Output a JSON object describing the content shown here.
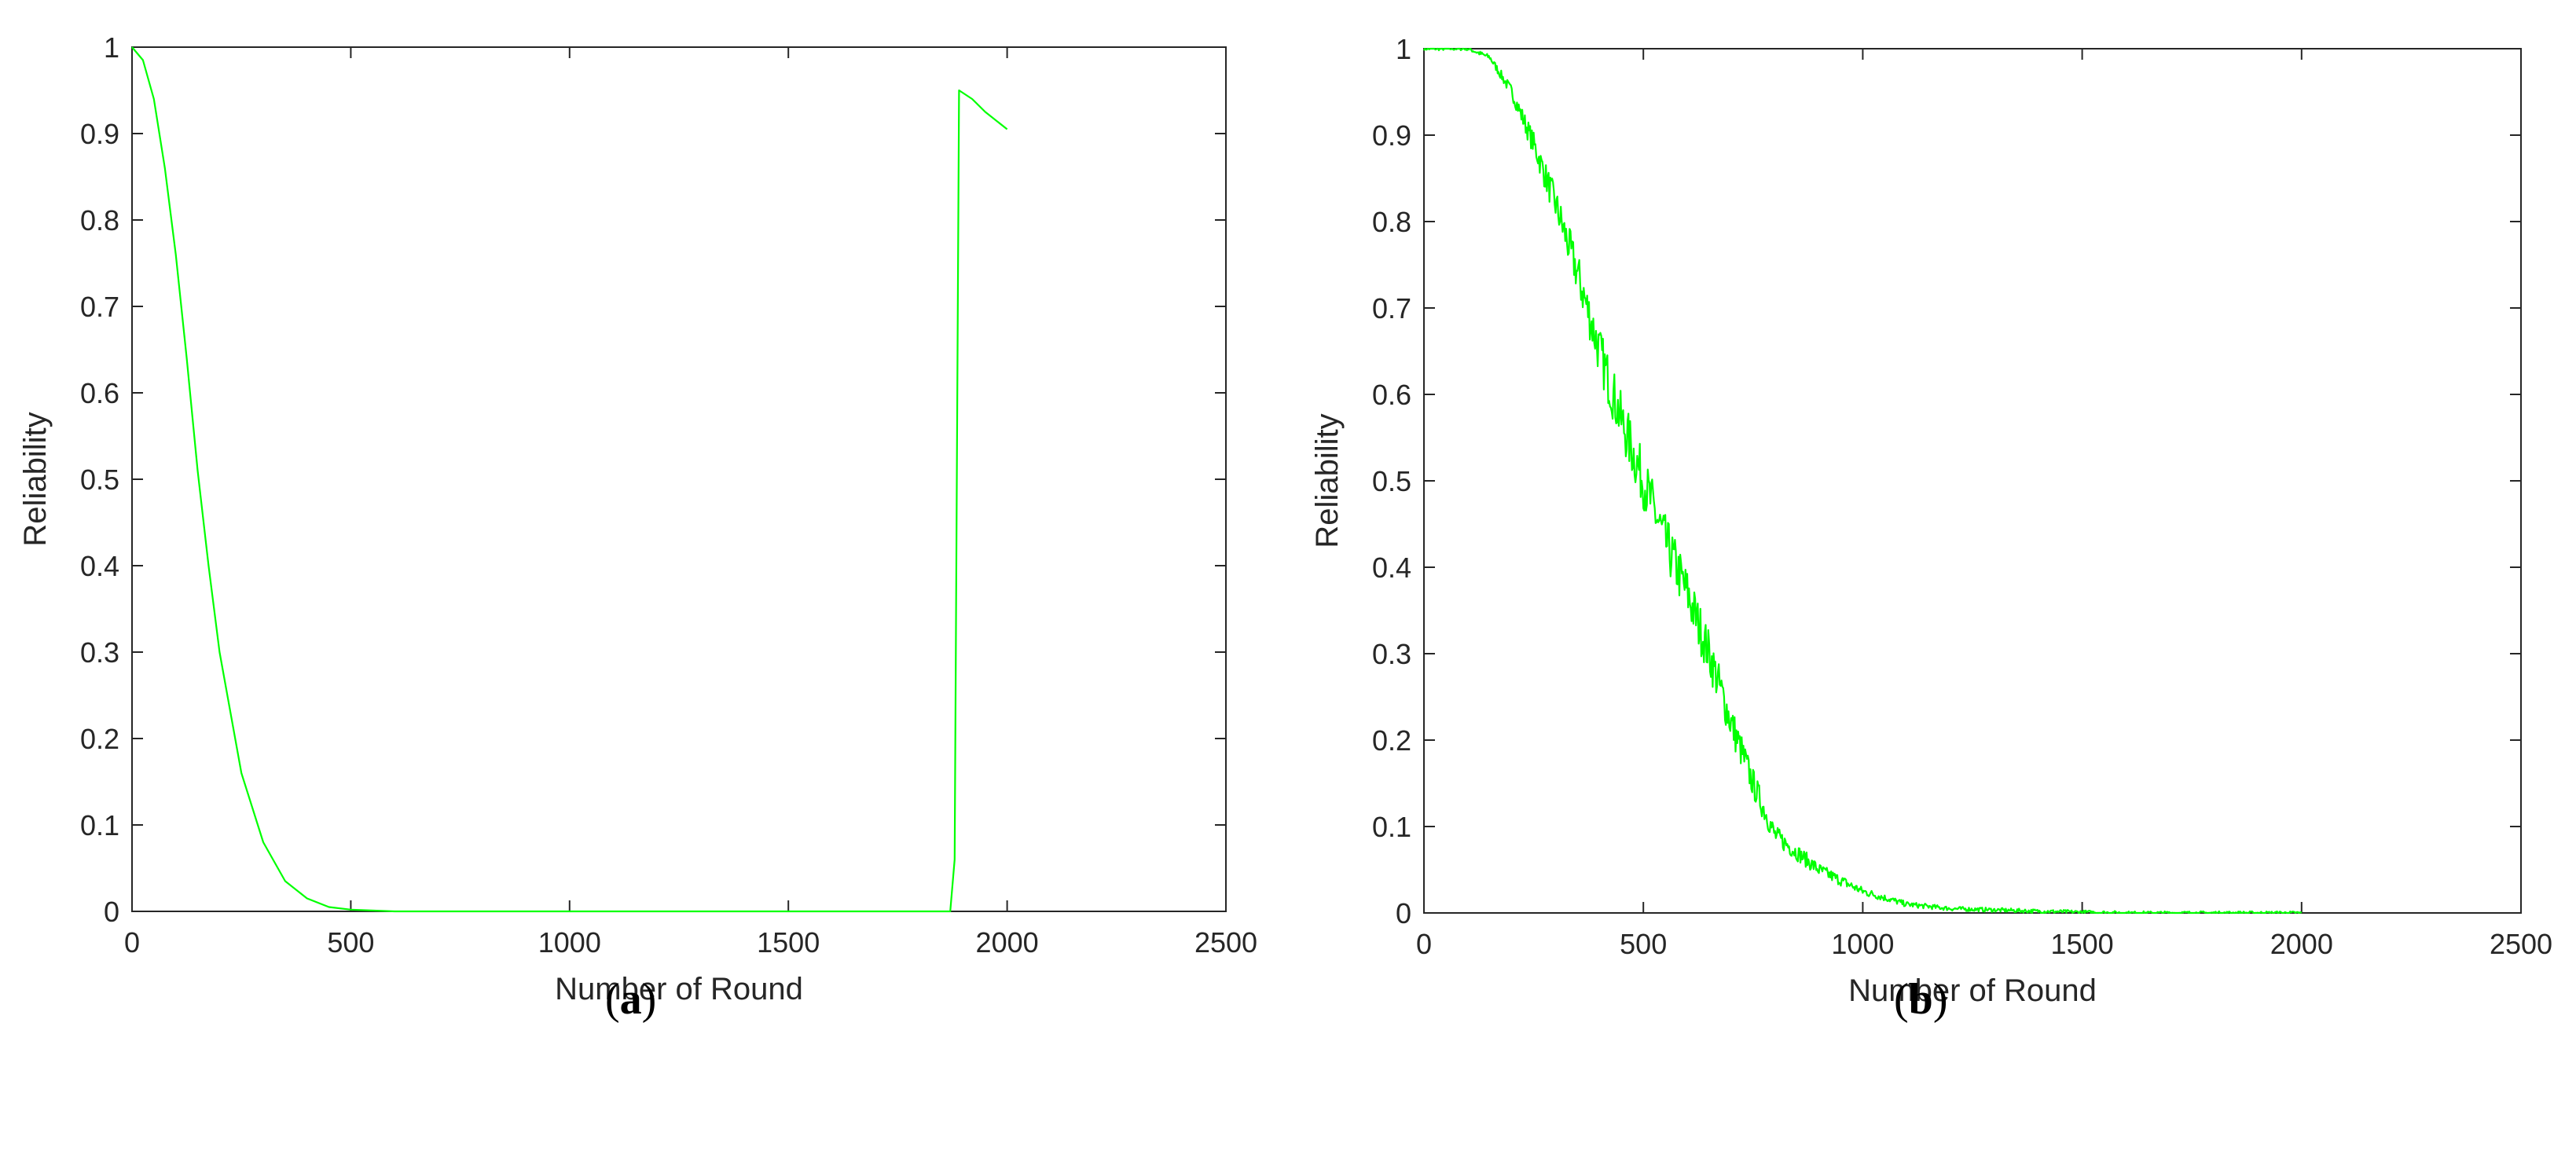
{
  "chart_data": [
    {
      "type": "line",
      "caption_open": "(",
      "caption_letter": "a",
      "caption_close": ")",
      "xlabel": "Number of Round",
      "ylabel": "Reliability",
      "xlim": [
        0,
        2500
      ],
      "ylim": [
        0,
        1
      ],
      "xticks": [
        "0",
        "500",
        "1000",
        "1500",
        "2000",
        "2500"
      ],
      "yticks": [
        "0",
        "0.1",
        "0.2",
        "0.3",
        "0.4",
        "0.5",
        "0.6",
        "0.7",
        "0.8",
        "0.9",
        "1"
      ],
      "line_color": "#00ff00",
      "grid": false,
      "series": [
        {
          "x": [
            0,
            25,
            50,
            75,
            100,
            125,
            150,
            175,
            200,
            250,
            300,
            350,
            400,
            450,
            500,
            600,
            800,
            1000,
            1500,
            1870,
            1880,
            1890,
            1920,
            1950,
            2000
          ],
          "y": [
            1.0,
            0.985,
            0.94,
            0.86,
            0.76,
            0.64,
            0.51,
            0.4,
            0.3,
            0.16,
            0.08,
            0.035,
            0.015,
            0.005,
            0.002,
            0.0,
            0.0,
            0.0,
            0.0,
            0.0,
            0.06,
            0.95,
            0.94,
            0.925,
            0.905
          ]
        }
      ]
    },
    {
      "type": "line",
      "caption_open": "(",
      "caption_letter": "b",
      "caption_close": ")",
      "xlabel": "Number of Round",
      "ylabel": "Reliability",
      "xlim": [
        0,
        2500
      ],
      "ylim": [
        0,
        1
      ],
      "xticks": [
        "0",
        "500",
        "1000",
        "1500",
        "2000",
        "2500"
      ],
      "yticks": [
        "0",
        "0.1",
        "0.2",
        "0.3",
        "0.4",
        "0.5",
        "0.6",
        "0.7",
        "0.8",
        "0.9",
        "1"
      ],
      "line_color": "#00ff00",
      "grid": false,
      "noisy": true,
      "series": [
        {
          "x": [
            0,
            100,
            150,
            200,
            250,
            300,
            350,
            400,
            450,
            500,
            550,
            600,
            650,
            700,
            750,
            800,
            900,
            1000,
            1100,
            1200,
            1400,
            1600,
            2000
          ],
          "y": [
            1.0,
            1.0,
            0.99,
            0.95,
            0.89,
            0.82,
            0.74,
            0.65,
            0.57,
            0.5,
            0.43,
            0.37,
            0.3,
            0.22,
            0.15,
            0.09,
            0.05,
            0.025,
            0.01,
            0.005,
            0.002,
            0.0,
            0.0
          ]
        }
      ]
    }
  ]
}
